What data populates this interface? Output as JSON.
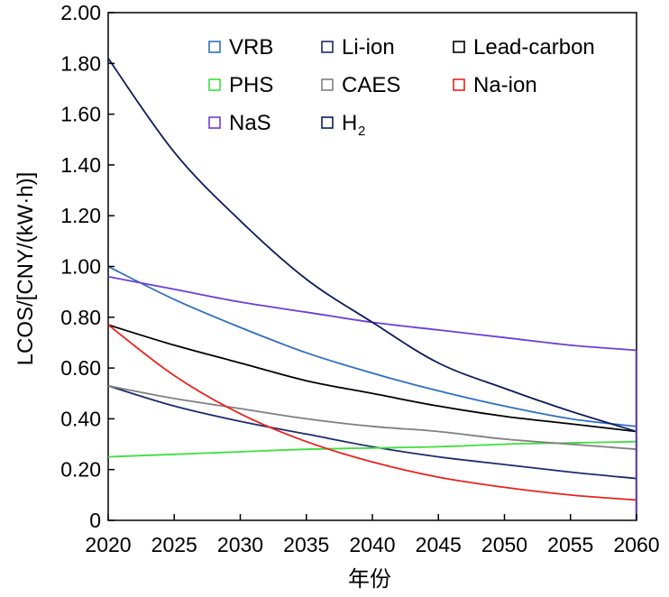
{
  "chart_data": {
    "type": "line",
    "title": "",
    "xlabel": "年份",
    "ylabel": "LCOS/[CNY/(kW·h)]",
    "xlim": [
      2020,
      2060
    ],
    "ylim": [
      0,
      2.0
    ],
    "xticks": [
      "2020",
      "2025",
      "2030",
      "2035",
      "2040",
      "2045",
      "2050",
      "2055",
      "2060"
    ],
    "yticks": [
      "0",
      "0.20",
      "0.40",
      "0.60",
      "0.80",
      "1.00",
      "1.20",
      "1.40",
      "1.60",
      "1.80",
      "2.00"
    ],
    "grid": false,
    "legend_position": "top-right",
    "x": [
      2020,
      2025,
      2030,
      2035,
      2040,
      2045,
      2050,
      2055,
      2060
    ],
    "series": [
      {
        "name": "VRB",
        "color": "#2f6fc1",
        "values": [
          1.0,
          0.87,
          0.76,
          0.66,
          0.58,
          0.51,
          0.45,
          0.4,
          0.37
        ]
      },
      {
        "name": "Li-ion",
        "color": "#1f2a6e",
        "values": [
          0.53,
          0.45,
          0.39,
          0.34,
          0.29,
          0.25,
          0.22,
          0.19,
          0.165
        ]
      },
      {
        "name": "Lead-carbon",
        "color": "#000000",
        "values": [
          0.77,
          0.69,
          0.62,
          0.55,
          0.5,
          0.45,
          0.41,
          0.38,
          0.35
        ]
      },
      {
        "name": "PHS",
        "color": "#3ee03e",
        "values": [
          0.25,
          0.26,
          0.27,
          0.28,
          0.285,
          0.29,
          0.3,
          0.305,
          0.31
        ]
      },
      {
        "name": "CAES",
        "color": "#7f7f7f",
        "values": [
          0.53,
          0.48,
          0.44,
          0.4,
          0.37,
          0.35,
          0.32,
          0.3,
          0.28
        ]
      },
      {
        "name": "Na-ion",
        "color": "#e8231e",
        "values": [
          0.77,
          0.57,
          0.42,
          0.31,
          0.23,
          0.17,
          0.13,
          0.1,
          0.08
        ]
      },
      {
        "name": "NaS",
        "color": "#6a3fd6",
        "values": [
          0.96,
          0.91,
          0.86,
          0.82,
          0.78,
          0.75,
          0.72,
          0.69,
          0.67
        ]
      },
      {
        "name": "H2",
        "color": "#0e1a5c",
        "values": [
          1.82,
          1.45,
          1.18,
          0.95,
          0.78,
          0.62,
          0.52,
          0.43,
          0.35
        ]
      }
    ]
  },
  "legend_display": [
    "VRB",
    "Li-ion",
    "Lead-carbon",
    "PHS",
    "CAES",
    "Na-ion",
    "NaS",
    "H"
  ],
  "h2_subscript": "2"
}
